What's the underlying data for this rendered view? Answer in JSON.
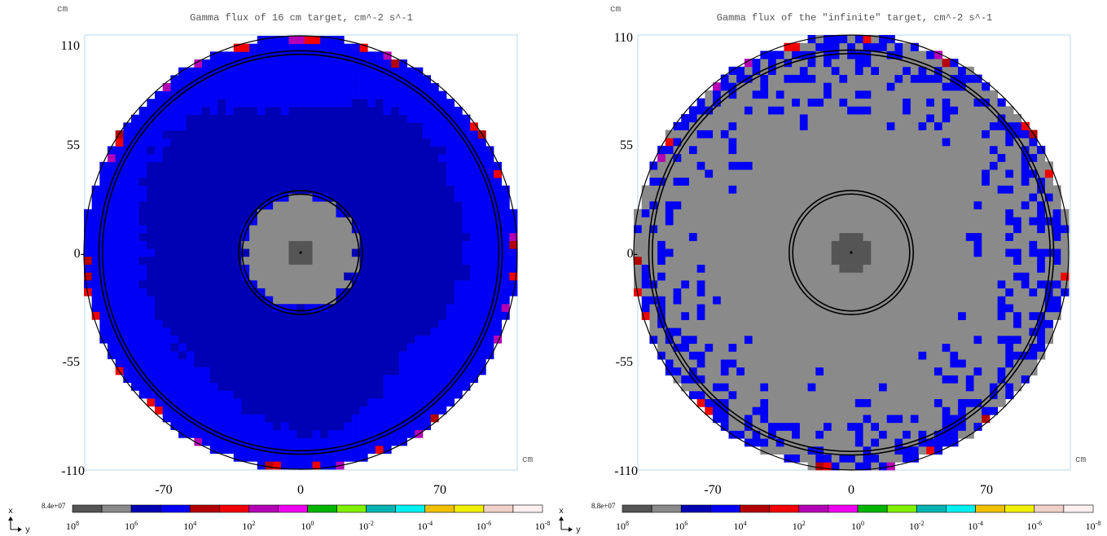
{
  "colormap": {
    "colors": [
      "#555555",
      "#8a8a8a",
      "#0000b4",
      "#0000f5",
      "#b40000",
      "#f00000",
      "#b400b4",
      "#f000f0",
      "#00b400",
      "#80f000",
      "#00b4b4",
      "#00f0f0",
      "#f0c000",
      "#f0f000",
      "#f0d0c8",
      "#fff0f0"
    ],
    "tick_labels": [
      "8",
      "6",
      "4",
      "2",
      "0",
      "-2",
      "-4",
      "-6",
      "-8"
    ],
    "tick_base": "10",
    "palette_semantics": "bin0 = flux >= 1e7 (dark gray), bin1 = 1e6..1e7 (gray), bin2 = 1e5..1e6 (dark blue), bin3 = 1e4..1e5 (blue)"
  },
  "chart_data": [
    {
      "type": "heatmap",
      "title": "Gamma flux of 16 cm target, cm^-2 s^-1",
      "xlabel": "cm",
      "ylabel": "cm",
      "max_label": "8.4e+07",
      "xlim": [
        -110,
        110
      ],
      "ylim": [
        -110,
        110
      ],
      "xticks": [
        "-70",
        "0",
        "70"
      ],
      "yticks": [
        "110",
        "55",
        "0-",
        "-55",
        "-110"
      ],
      "axis_indicator": {
        "up": "x",
        "right": "y"
      },
      "grid": false,
      "cell_size_cm": 4,
      "regions": [
        {
          "shape": "circle",
          "radius_cm": 110,
          "flux_bin": 3,
          "description": "outer shell, 1e4..1e5"
        },
        {
          "shape": "blob",
          "radius_cm": 82,
          "flux_bin": 2,
          "description": "inner volume, 1e5..1e6"
        },
        {
          "shape": "circle",
          "radius_cm": 28,
          "flux_bin": 1,
          "description": "core region, 1e6..1e7"
        },
        {
          "shape": "circle",
          "radius_cm": 6.5,
          "flux_bin": 0,
          "description": "target, >=1e7"
        }
      ],
      "boundary_rings_cm": [
        30.5,
        101.5
      ],
      "rim_flux_bins": [
        4,
        5,
        6
      ]
    },
    {
      "type": "heatmap",
      "title": "Gamma flux of the \"infinite\" target, cm^-2 s^-1",
      "xlabel": "cm",
      "ylabel": "cm",
      "max_label": "8.8e+07",
      "xlim": [
        -110,
        110
      ],
      "ylim": [
        -110,
        110
      ],
      "xticks": [
        "-70",
        "0",
        "70"
      ],
      "yticks": [
        "110",
        "55",
        "0-",
        "-55",
        "-110"
      ],
      "axis_indicator": {
        "up": "x",
        "right": "y"
      },
      "grid": false,
      "cell_size_cm": 4,
      "regions": [
        {
          "shape": "circle",
          "radius_cm": 110,
          "flux_bin": 1,
          "description": "bulk, 1e6..1e7"
        },
        {
          "shape": "speckle",
          "inner_radius_cm": 65,
          "outer_radius_cm": 110,
          "flux_bin": 3,
          "description": "scattered 1e4..1e5 cells"
        },
        {
          "shape": "circle",
          "radius_cm": 9.5,
          "flux_bin": 0,
          "description": "target, >=1e7"
        }
      ],
      "boundary_rings_cm": [
        30.5,
        101.5
      ],
      "rim_flux_bins": [
        4,
        5,
        6
      ]
    }
  ]
}
